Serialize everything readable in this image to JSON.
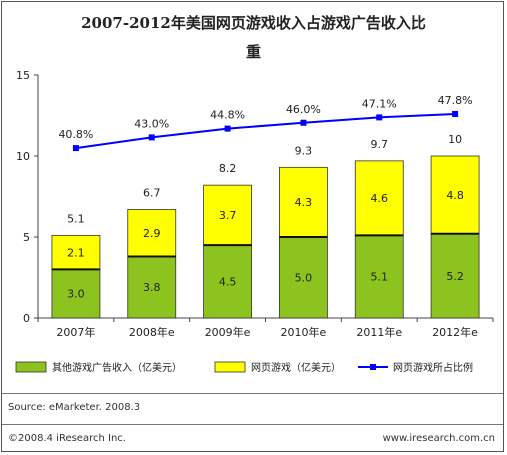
{
  "chart_data": {
    "type": "bar",
    "title": "2007-2012年美国网页游戏收入占游戏广告收入比",
    "title_line2": "重",
    "categories": [
      "2007年",
      "2008年e",
      "2009年e",
      "2010年e",
      "2011年e",
      "2012年e"
    ],
    "series": [
      {
        "name": "其他游戏广告收入（亿美元）",
        "values": [
          3.0,
          3.8,
          4.5,
          5.0,
          5.1,
          5.2
        ],
        "color": "#8dc31e",
        "stack": "total"
      },
      {
        "name": "网页游戏（亿美元）",
        "values": [
          2.1,
          2.9,
          3.7,
          4.3,
          4.6,
          4.8
        ],
        "color": "#ffff00",
        "stack": "total"
      },
      {
        "name": "网页游戏所占比例",
        "type": "line",
        "values": [
          40.8,
          43.0,
          44.8,
          46.0,
          47.1,
          47.8
        ],
        "color": "#0000ff"
      }
    ],
    "series_labels": [
      [
        "3.0",
        "3.8",
        "4.5",
        "5.0",
        "5.1",
        "5.2"
      ],
      [
        "2.1",
        "2.9",
        "3.7",
        "4.3",
        "4.6",
        "4.8"
      ]
    ],
    "totals": [
      5.1,
      6.7,
      8.2,
      9.3,
      9.7,
      10
    ],
    "total_labels": [
      "5.1",
      "6.7",
      "8.2",
      "9.3",
      "9.7",
      "10"
    ],
    "percent_labels": [
      "40.8%",
      "43.0%",
      "44.8%",
      "46.0%",
      "47.1%",
      "47.8%"
    ],
    "ylim": [
      0,
      15
    ],
    "yticks": [
      0,
      5,
      10,
      15
    ],
    "ytick_labels": [
      "0",
      "5",
      "10",
      "15"
    ],
    "grid": false,
    "legend_position": "bottom"
  },
  "source": "Source: eMarketer. 2008.3",
  "copyright": "©2008.4 iResearch Inc.",
  "website": "www.iresearch.com.cn",
  "colors": {
    "bar_bottom": "#8dc31e",
    "bar_top": "#ffff00",
    "line": "#0000ff"
  }
}
